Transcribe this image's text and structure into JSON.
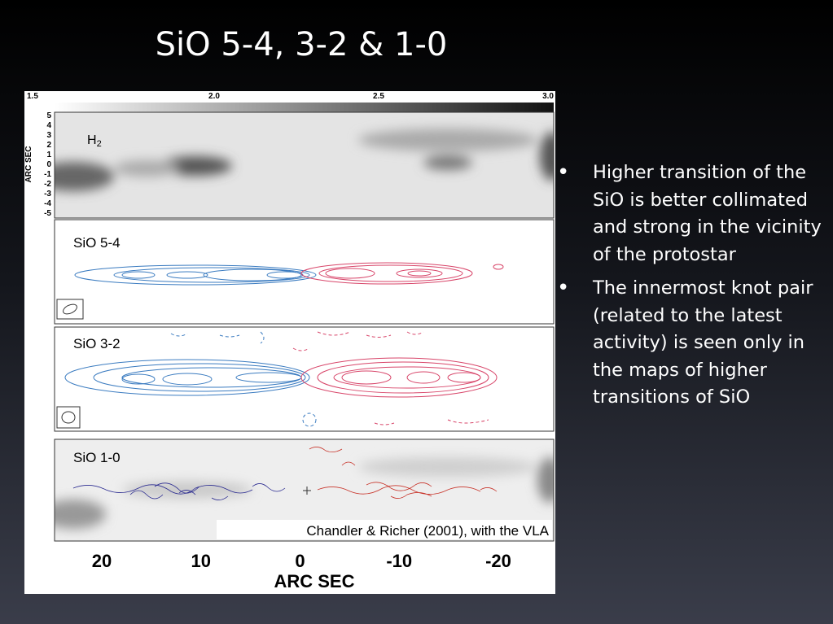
{
  "slide": {
    "title": "SiO 5-4, 3-2 & 1-0",
    "bullets": [
      "Higher transition of the SiO is better collimated and strong in the vicinity of the protostar",
      "The innermost knot pair (related to the latest activity) is seen only in the maps of higher transitions of SiO"
    ],
    "figure": {
      "top_ticks": [
        "1.5",
        "2.0",
        "2.5",
        "3.0"
      ],
      "left_axis_label": "ARC SEC",
      "left_ticks": [
        "5",
        "4",
        "3",
        "2",
        "1",
        "0",
        "-1",
        "-2",
        "-3",
        "-4",
        "-5"
      ],
      "panels": [
        {
          "label": "H",
          "label_sub": "2"
        },
        {
          "label": "SiO 5-4"
        },
        {
          "label": "SiO 3-2"
        },
        {
          "label": "SiO 1-0"
        }
      ],
      "caption": "Chandler & Richer (2001), with the VLA",
      "bottom_ticks": [
        "20",
        "10",
        "0",
        "-10",
        "-20"
      ],
      "bottom_axis_label": "ARC SEC"
    }
  }
}
